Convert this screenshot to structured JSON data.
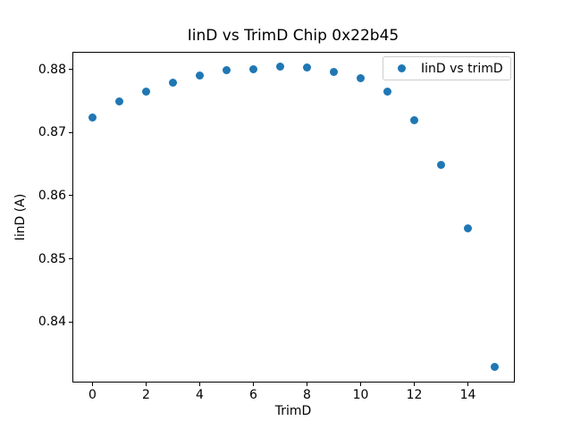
{
  "figure": {
    "background": "#ffffff",
    "text_color": "#000000",
    "spine_color": "#000000"
  },
  "chart_data": {
    "type": "scatter",
    "title": "IinD vs TrimD Chip 0x22b45",
    "xlabel": "TrimD",
    "ylabel": "IinD (A)",
    "xlim": [
      -0.75,
      15.75
    ],
    "ylim": [
      0.8304,
      0.8828
    ],
    "xticks": [
      0,
      2,
      4,
      6,
      8,
      10,
      12,
      14
    ],
    "yticks": [
      0.88,
      0.87,
      0.86,
      0.85,
      0.84
    ],
    "ytick_decimals": 2,
    "grid": false,
    "legend": {
      "position": "upper right",
      "entries": [
        "IinD vs trimD"
      ]
    },
    "series": [
      {
        "name": "IinD vs trimD",
        "color": "#1f77b4",
        "x": [
          0,
          1,
          2,
          3,
          4,
          5,
          6,
          7,
          8,
          9,
          10,
          11,
          12,
          13,
          14,
          15
        ],
        "y": [
          0.8724,
          0.875,
          0.8765,
          0.8779,
          0.879,
          0.8799,
          0.88,
          0.8804,
          0.8803,
          0.8796,
          0.8786,
          0.8765,
          0.872,
          0.8649,
          0.8549,
          0.8329
        ]
      }
    ]
  }
}
